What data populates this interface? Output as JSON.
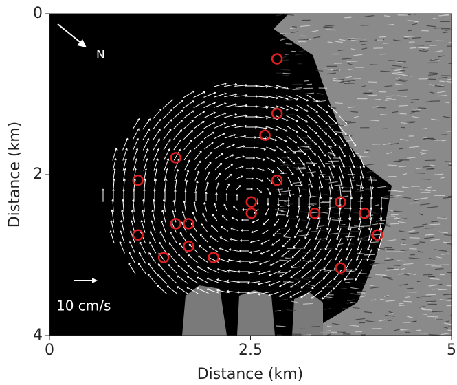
{
  "chart_data": {
    "type": "scatter",
    "xlabel": "Distance (km)",
    "ylabel": "Distance (km)",
    "xlim": [
      0,
      5
    ],
    "xticks": [
      0,
      2.5,
      5
    ],
    "ylim": [
      4,
      0
    ],
    "yticks": [
      0,
      2,
      4
    ],
    "annotations": [
      "N",
      "10 cm/s"
    ],
    "series": [
      {
        "name": null,
        "color": "#e02020",
        "x": [
          2.83,
          2.83,
          2.68,
          1.57,
          2.83,
          1.1,
          2.51,
          2.51,
          3.3,
          3.62,
          3.92,
          1.57,
          1.73,
          1.1,
          4.08,
          1.73,
          1.42,
          2.04,
          3.62
        ],
        "values": [
          0.56,
          1.24,
          1.51,
          1.79,
          2.07,
          2.07,
          2.34,
          2.48,
          2.48,
          2.34,
          2.48,
          2.61,
          2.61,
          2.75,
          2.75,
          2.89,
          3.03,
          3.03,
          3.16
        ]
      }
    ]
  }
}
